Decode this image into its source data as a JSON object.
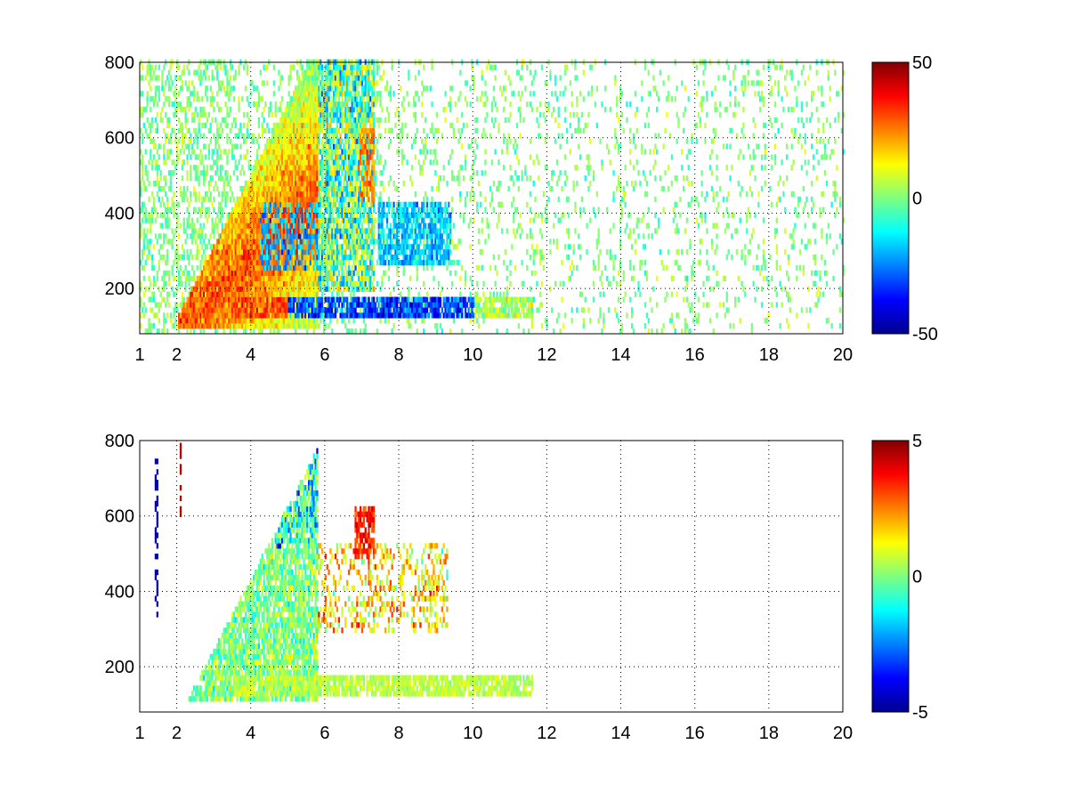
{
  "chart_data": [
    {
      "type": "heatmap",
      "xlim": [
        1,
        20
      ],
      "ylim": [
        80,
        800
      ],
      "xticks": [
        1,
        2,
        4,
        6,
        8,
        10,
        12,
        14,
        16,
        18,
        20
      ],
      "xtick_labels": [
        "1",
        "2",
        "4",
        "6",
        "8",
        "10",
        "12",
        "14",
        "16",
        "18",
        "20"
      ],
      "yticks": [
        200,
        400,
        600,
        800
      ],
      "ytick_labels": [
        "200",
        "400",
        "600",
        "800"
      ],
      "grid": true,
      "colormap": "jet",
      "colorbar": {
        "clim": [
          -50,
          50
        ],
        "tick_values": [
          50,
          0,
          -50
        ],
        "tick_labels": [
          "50",
          "0",
          "-50"
        ]
      },
      "description_features": {
        "diagonal_ridge": {
          "x_range": [
            2,
            5.8
          ],
          "y_range": [
            100,
            800
          ],
          "peak_value": 40
        },
        "horizontal_band": {
          "y": 140,
          "x_range": [
            4,
            11.5
          ],
          "value": -45
        },
        "blue_cluster": {
          "x_range": [
            4.3,
            9.3
          ],
          "y_range": [
            250,
            420
          ],
          "value": -25
        },
        "sparse_noise": {
          "x_range": [
            9.5,
            20
          ],
          "value_range": [
            -10,
            10
          ]
        }
      }
    },
    {
      "type": "heatmap",
      "xlim": [
        1,
        20
      ],
      "ylim": [
        80,
        800
      ],
      "xticks": [
        1,
        2,
        4,
        6,
        8,
        10,
        12,
        14,
        16,
        18,
        20
      ],
      "xtick_labels": [
        "1",
        "2",
        "4",
        "6",
        "8",
        "10",
        "12",
        "14",
        "16",
        "18",
        "20"
      ],
      "yticks": [
        200,
        400,
        600,
        800
      ],
      "ytick_labels": [
        "200",
        "400",
        "600",
        "800"
      ],
      "grid": true,
      "colormap": "jet",
      "colorbar": {
        "clim": [
          -5,
          5
        ],
        "tick_values": [
          5,
          0,
          -5
        ],
        "tick_labels": [
          "5",
          "0",
          "-5"
        ]
      },
      "description_features": {
        "diagonal_ridge": {
          "x_range": [
            2.4,
            5.8
          ],
          "y_range": [
            100,
            800
          ],
          "value_range": [
            -2,
            2
          ]
        },
        "horizontal_band": {
          "y": 140,
          "x_range": [
            3.5,
            11.6
          ],
          "value": 0.5
        },
        "red_patch": {
          "x": 7.0,
          "y_range": [
            480,
            620
          ],
          "value": 4
        },
        "mixed_patch": {
          "x_range": [
            6.3,
            9.3
          ],
          "y_range": [
            280,
            500
          ],
          "value_range": [
            -3,
            4
          ]
        }
      }
    }
  ]
}
